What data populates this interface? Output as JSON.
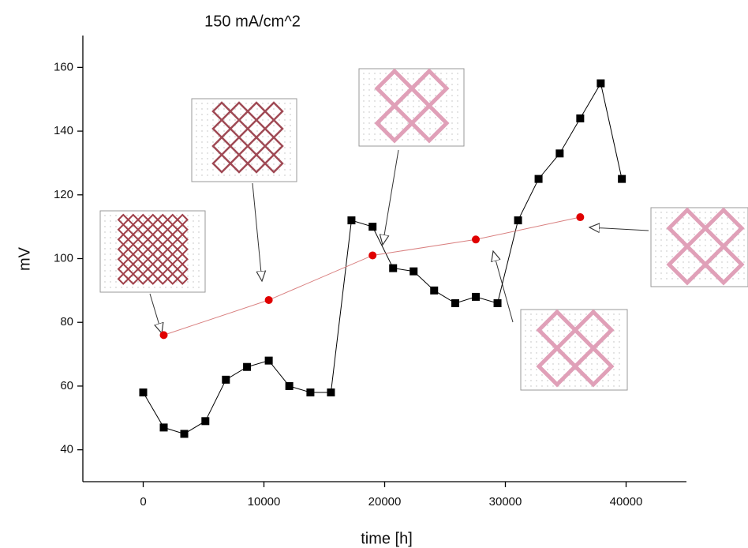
{
  "chart_data": {
    "type": "line",
    "title": "150 mA/cm^2",
    "xlabel": "time [h]",
    "ylabel": "mV",
    "xlim": [
      -5000,
      45000
    ],
    "xticks": [
      0,
      10000,
      20000,
      30000,
      40000
    ],
    "ylim": [
      30,
      170
    ],
    "yticks": [
      40,
      60,
      80,
      100,
      120,
      140,
      160
    ],
    "series": [
      {
        "color": "#000000",
        "marker": "square",
        "x": [
          0,
          1700,
          3400,
          5150,
          6850,
          8600,
          10400,
          12100,
          13850,
          15550,
          17250,
          19000,
          20700,
          22400,
          24100,
          25850,
          27550,
          29350,
          31050,
          32750,
          34500,
          36200,
          37900,
          39650
        ],
        "values": [
          58,
          47,
          45,
          49,
          62,
          66,
          68,
          60,
          58,
          58,
          112,
          110,
          97,
          96,
          90,
          86,
          88,
          86,
          112,
          125,
          133,
          144,
          155,
          125
        ]
      },
      {
        "color": "#e00000",
        "line_color": "#d98080",
        "marker": "circle",
        "x": [
          1700,
          10400,
          19000,
          27550,
          36200
        ],
        "values": [
          76,
          87,
          101,
          106,
          113
        ]
      }
    ]
  }
}
